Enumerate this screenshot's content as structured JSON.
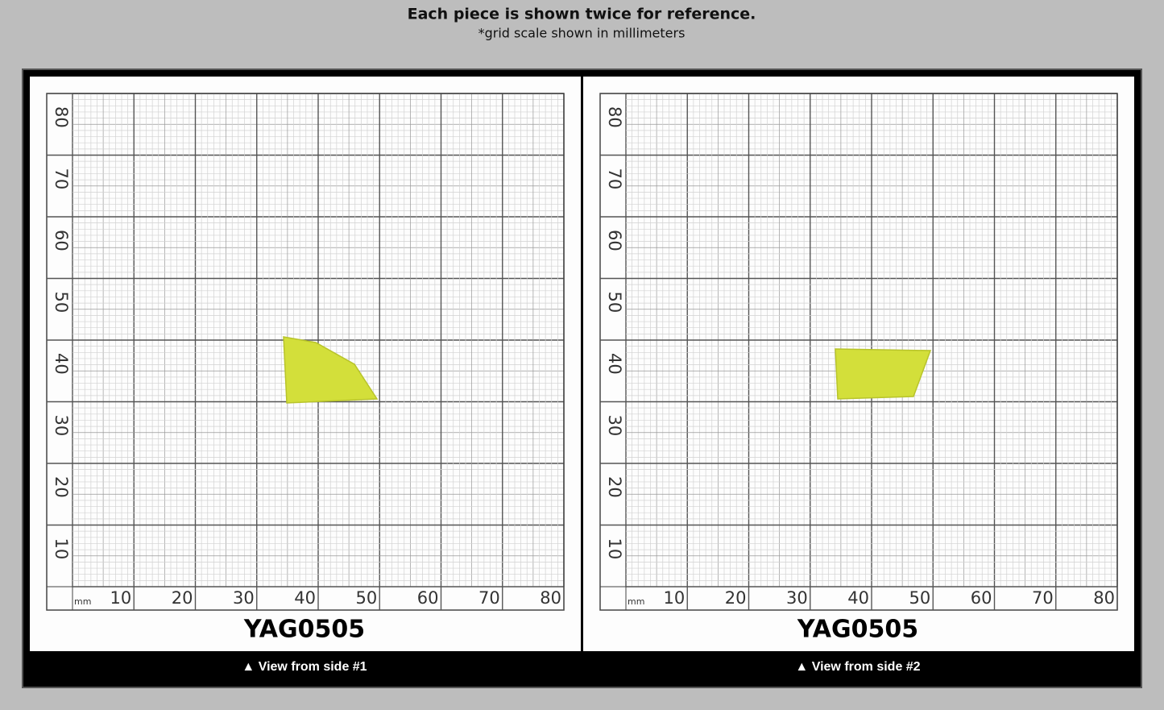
{
  "header": {
    "title": "Each piece is shown twice for reference.",
    "subtitle": "*grid scale shown in millimeters"
  },
  "panels": [
    {
      "unit": "mm",
      "x_labels": [
        "10",
        "20",
        "30",
        "40",
        "50",
        "60",
        "70",
        "80"
      ],
      "y_labels": [
        "10",
        "20",
        "30",
        "40",
        "50",
        "60",
        "70",
        "80"
      ],
      "item_label": "YAG0505",
      "caption": "▲ View from side #1"
    },
    {
      "unit": "mm",
      "x_labels": [
        "10",
        "20",
        "30",
        "40",
        "50",
        "60",
        "70",
        "80"
      ],
      "y_labels": [
        "10",
        "20",
        "30",
        "40",
        "50",
        "60",
        "70",
        "80"
      ],
      "item_label": "YAG0505",
      "caption": "▲ View from side #2"
    }
  ]
}
